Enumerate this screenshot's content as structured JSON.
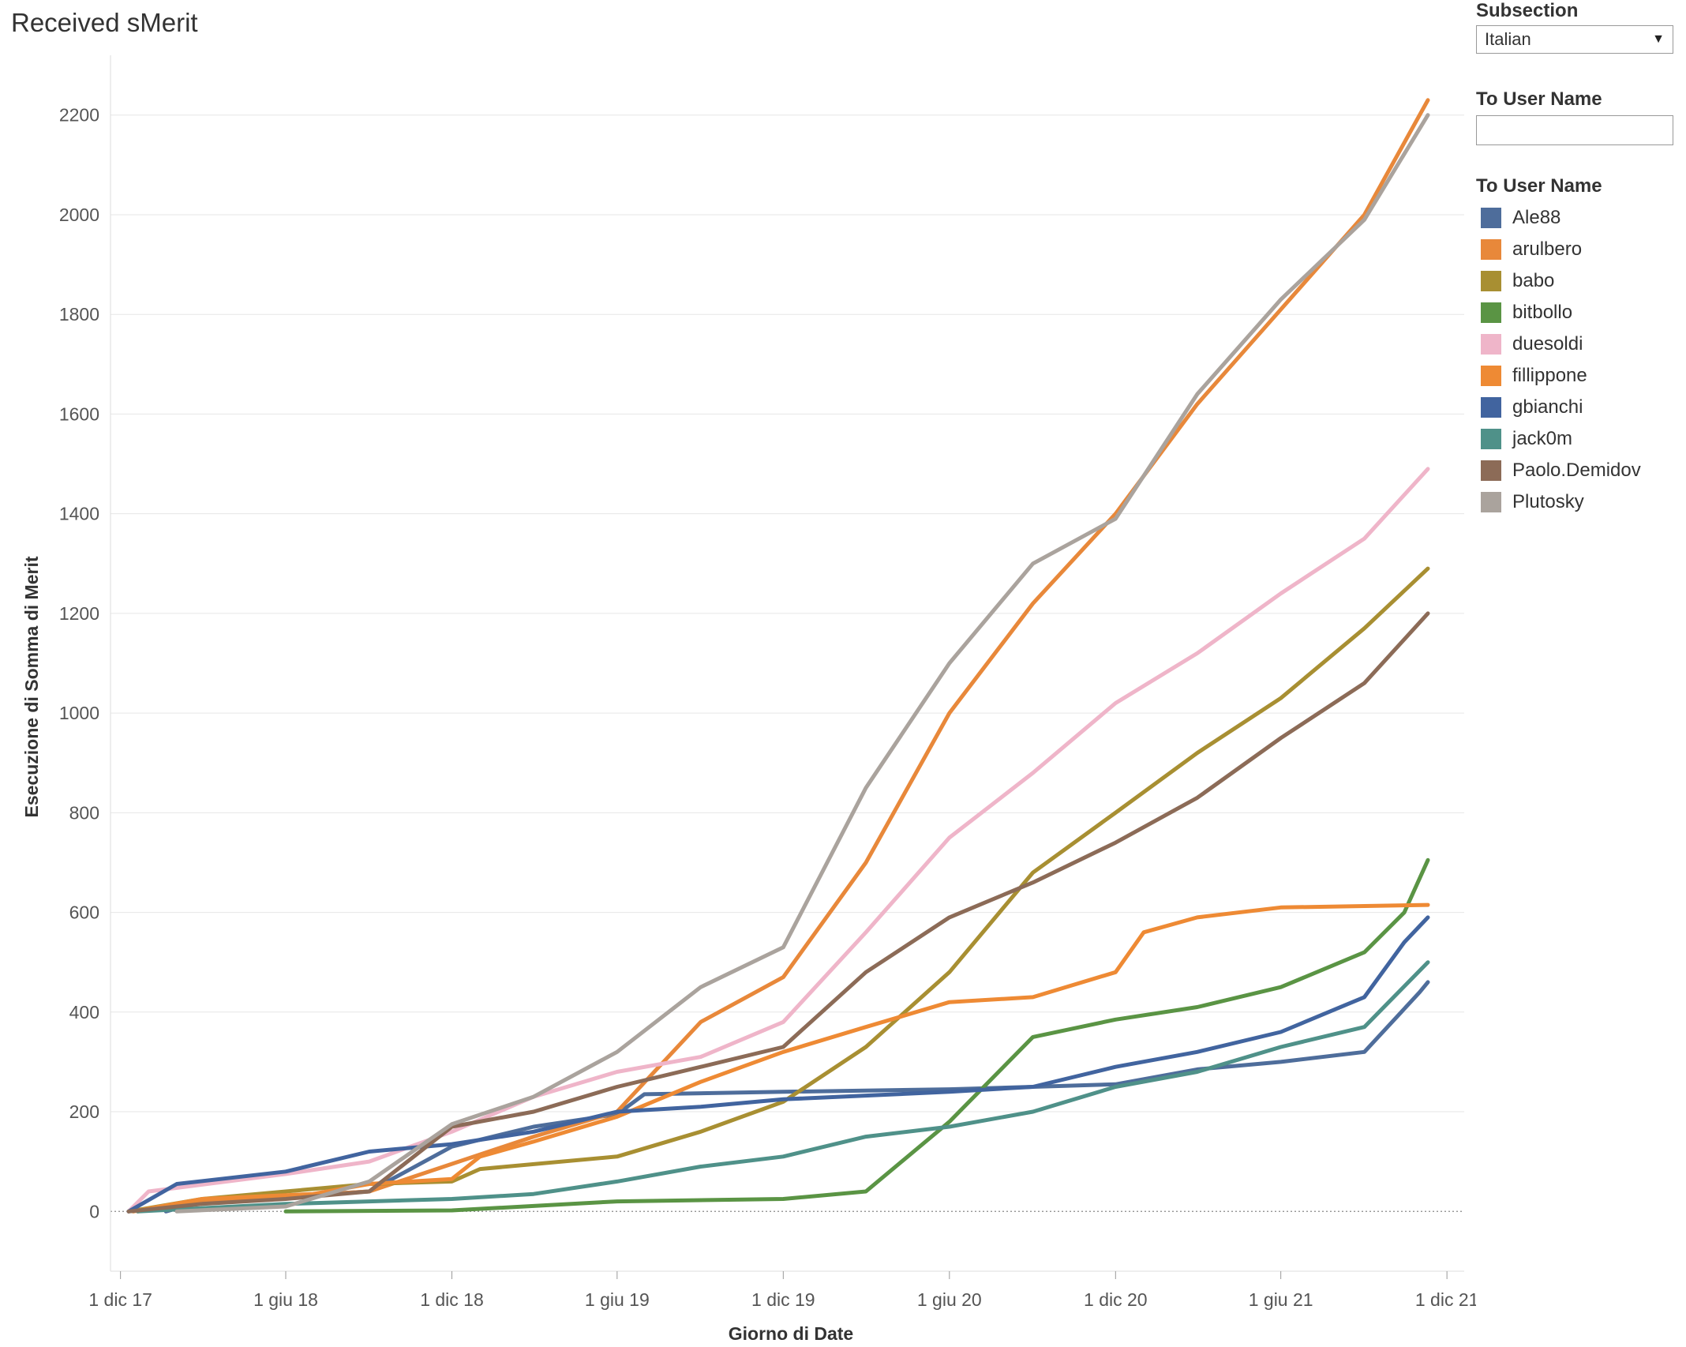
{
  "title": "Received sMerit",
  "controls": {
    "subsection_label": "Subsection",
    "subsection_value": "Italian",
    "filter_label": "To User Name",
    "filter_value": "",
    "legend_title": "To User Name"
  },
  "legend": [
    {
      "name": "Ale88",
      "color": "#4e6d9b"
    },
    {
      "name": "arulbero",
      "color": "#e8883a"
    },
    {
      "name": "babo",
      "color": "#a88f32"
    },
    {
      "name": "bitbollo",
      "color": "#5a9444"
    },
    {
      "name": "duesoldi",
      "color": "#efb5c9"
    },
    {
      "name": "fillippone",
      "color": "#ee8a34"
    },
    {
      "name": "gbianchi",
      "color": "#41649f"
    },
    {
      "name": "jack0m",
      "color": "#4f9189"
    },
    {
      "name": "Paolo.Demidov",
      "color": "#8c6b57"
    },
    {
      "name": "Plutosky",
      "color": "#aaa39d"
    }
  ],
  "chart_data": {
    "type": "line",
    "title": "Received sMerit",
    "xlabel": "Giorno di Date",
    "ylabel": "Esecuzione di Somma di Merit",
    "x_ticks": [
      "1 dic 17",
      "1 giu 18",
      "1 dic 18",
      "1 giu 19",
      "1 dic 19",
      "1 giu 20",
      "1 dic 20",
      "1 giu 21",
      "1 dic 21"
    ],
    "y_ticks": [
      0,
      200,
      400,
      600,
      800,
      1000,
      1200,
      1400,
      1600,
      1800,
      2000,
      2200
    ],
    "ylim": [
      -120,
      2320
    ],
    "xlim": [
      "2017-11-20",
      "2021-12-20"
    ],
    "grid": true,
    "legend_position": "right",
    "series": [
      {
        "name": "Ale88",
        "color": "#4e6d9b",
        "points": [
          [
            "2018-01-20",
            0
          ],
          [
            "2018-03-01",
            20
          ],
          [
            "2018-06-01",
            30
          ],
          [
            "2018-09-01",
            40
          ],
          [
            "2018-12-01",
            130
          ],
          [
            "2019-03-01",
            170
          ],
          [
            "2019-06-01",
            195
          ],
          [
            "2019-07-01",
            235
          ],
          [
            "2019-12-01",
            240
          ],
          [
            "2020-06-01",
            245
          ],
          [
            "2020-09-01",
            250
          ],
          [
            "2020-12-01",
            255
          ],
          [
            "2021-03-01",
            285
          ],
          [
            "2021-06-01",
            300
          ],
          [
            "2021-09-01",
            320
          ],
          [
            "2021-11-01",
            440
          ],
          [
            "2021-11-10",
            460
          ]
        ]
      },
      {
        "name": "arulbero",
        "color": "#e8883a",
        "points": [
          [
            "2017-12-20",
            0
          ],
          [
            "2018-03-01",
            20
          ],
          [
            "2018-09-01",
            40
          ],
          [
            "2019-03-01",
            150
          ],
          [
            "2019-06-01",
            200
          ],
          [
            "2019-09-01",
            380
          ],
          [
            "2019-12-01",
            470
          ],
          [
            "2020-03-01",
            700
          ],
          [
            "2020-06-01",
            1000
          ],
          [
            "2020-09-01",
            1220
          ],
          [
            "2020-12-01",
            1400
          ],
          [
            "2021-03-01",
            1620
          ],
          [
            "2021-06-01",
            1810
          ],
          [
            "2021-09-01",
            2000
          ],
          [
            "2021-11-10",
            2230
          ]
        ]
      },
      {
        "name": "babo",
        "color": "#a88f32",
        "points": [
          [
            "2017-12-10",
            0
          ],
          [
            "2018-03-01",
            25
          ],
          [
            "2018-06-01",
            40
          ],
          [
            "2018-09-01",
            55
          ],
          [
            "2018-12-01",
            60
          ],
          [
            "2019-01-01",
            85
          ],
          [
            "2019-06-01",
            110
          ],
          [
            "2019-09-01",
            160
          ],
          [
            "2019-12-01",
            220
          ],
          [
            "2020-03-01",
            330
          ],
          [
            "2020-06-01",
            480
          ],
          [
            "2020-09-01",
            680
          ],
          [
            "2020-12-01",
            800
          ],
          [
            "2021-03-01",
            920
          ],
          [
            "2021-06-01",
            1030
          ],
          [
            "2021-09-01",
            1170
          ],
          [
            "2021-11-10",
            1290
          ]
        ]
      },
      {
        "name": "bitbollo",
        "color": "#5a9444",
        "points": [
          [
            "2018-06-01",
            0
          ],
          [
            "2018-12-01",
            2
          ],
          [
            "2019-06-01",
            20
          ],
          [
            "2019-12-01",
            25
          ],
          [
            "2020-03-01",
            40
          ],
          [
            "2020-06-01",
            180
          ],
          [
            "2020-09-01",
            350
          ],
          [
            "2020-12-01",
            385
          ],
          [
            "2021-03-01",
            410
          ],
          [
            "2021-06-01",
            450
          ],
          [
            "2021-09-01",
            520
          ],
          [
            "2021-10-15",
            600
          ],
          [
            "2021-11-10",
            705
          ]
        ]
      },
      {
        "name": "duesoldi",
        "color": "#efb5c9",
        "points": [
          [
            "2017-12-10",
            0
          ],
          [
            "2018-01-01",
            40
          ],
          [
            "2018-06-01",
            75
          ],
          [
            "2018-09-01",
            100
          ],
          [
            "2018-12-01",
            160
          ],
          [
            "2019-03-01",
            230
          ],
          [
            "2019-06-01",
            280
          ],
          [
            "2019-09-01",
            310
          ],
          [
            "2019-12-01",
            380
          ],
          [
            "2020-03-01",
            560
          ],
          [
            "2020-06-01",
            750
          ],
          [
            "2020-09-01",
            880
          ],
          [
            "2020-12-01",
            1020
          ],
          [
            "2021-03-01",
            1120
          ],
          [
            "2021-06-01",
            1240
          ],
          [
            "2021-09-01",
            1350
          ],
          [
            "2021-11-10",
            1490
          ]
        ]
      },
      {
        "name": "fillippone",
        "color": "#ee8a34",
        "points": [
          [
            "2017-12-15",
            0
          ],
          [
            "2018-03-01",
            25
          ],
          [
            "2018-07-01",
            35
          ],
          [
            "2018-09-01",
            55
          ],
          [
            "2018-12-01",
            65
          ],
          [
            "2019-01-01",
            110
          ],
          [
            "2019-03-01",
            140
          ],
          [
            "2019-06-01",
            190
          ],
          [
            "2019-09-01",
            260
          ],
          [
            "2019-12-01",
            320
          ],
          [
            "2020-03-01",
            370
          ],
          [
            "2020-06-01",
            420
          ],
          [
            "2020-09-01",
            430
          ],
          [
            "2020-12-01",
            480
          ],
          [
            "2021-01-01",
            560
          ],
          [
            "2021-03-01",
            590
          ],
          [
            "2021-06-01",
            610
          ],
          [
            "2021-11-10",
            615
          ]
        ]
      },
      {
        "name": "gbianchi",
        "color": "#41649f",
        "points": [
          [
            "2017-12-10",
            0
          ],
          [
            "2018-02-01",
            55
          ],
          [
            "2018-06-01",
            80
          ],
          [
            "2018-09-01",
            120
          ],
          [
            "2018-12-01",
            135
          ],
          [
            "2019-03-01",
            160
          ],
          [
            "2019-06-01",
            200
          ],
          [
            "2019-09-01",
            210
          ],
          [
            "2019-12-01",
            225
          ],
          [
            "2020-06-01",
            240
          ],
          [
            "2020-09-01",
            250
          ],
          [
            "2020-12-01",
            290
          ],
          [
            "2021-03-01",
            320
          ],
          [
            "2021-06-01",
            360
          ],
          [
            "2021-09-01",
            430
          ],
          [
            "2021-10-15",
            540
          ],
          [
            "2021-11-10",
            590
          ]
        ]
      },
      {
        "name": "jack0m",
        "color": "#4f9189",
        "points": [
          [
            "2017-12-20",
            0
          ],
          [
            "2018-06-01",
            15
          ],
          [
            "2018-12-01",
            25
          ],
          [
            "2019-03-01",
            35
          ],
          [
            "2019-06-01",
            60
          ],
          [
            "2019-09-01",
            90
          ],
          [
            "2019-12-01",
            110
          ],
          [
            "2020-03-01",
            150
          ],
          [
            "2020-06-01",
            170
          ],
          [
            "2020-09-01",
            200
          ],
          [
            "2020-12-01",
            250
          ],
          [
            "2021-03-01",
            280
          ],
          [
            "2021-06-01",
            330
          ],
          [
            "2021-09-01",
            370
          ],
          [
            "2021-11-10",
            500
          ]
        ]
      },
      {
        "name": "Paolo.Demidov",
        "color": "#8c6b57",
        "points": [
          [
            "2017-12-10",
            0
          ],
          [
            "2018-03-01",
            15
          ],
          [
            "2018-06-01",
            25
          ],
          [
            "2018-09-01",
            40
          ],
          [
            "2018-12-01",
            170
          ],
          [
            "2019-03-01",
            200
          ],
          [
            "2019-06-01",
            250
          ],
          [
            "2019-09-01",
            290
          ],
          [
            "2019-12-01",
            330
          ],
          [
            "2020-03-01",
            480
          ],
          [
            "2020-06-01",
            590
          ],
          [
            "2020-09-01",
            660
          ],
          [
            "2020-12-01",
            740
          ],
          [
            "2021-03-01",
            830
          ],
          [
            "2021-06-01",
            950
          ],
          [
            "2021-09-01",
            1060
          ],
          [
            "2021-11-10",
            1200
          ]
        ]
      },
      {
        "name": "Plutosky",
        "color": "#aaa39d",
        "points": [
          [
            "2018-02-01",
            0
          ],
          [
            "2018-06-01",
            10
          ],
          [
            "2018-09-01",
            60
          ],
          [
            "2018-12-01",
            175
          ],
          [
            "2019-03-01",
            230
          ],
          [
            "2019-06-01",
            320
          ],
          [
            "2019-09-01",
            450
          ],
          [
            "2019-12-01",
            530
          ],
          [
            "2020-03-01",
            850
          ],
          [
            "2020-06-01",
            1100
          ],
          [
            "2020-09-01",
            1300
          ],
          [
            "2020-12-01",
            1390
          ],
          [
            "2021-03-01",
            1640
          ],
          [
            "2021-06-01",
            1830
          ],
          [
            "2021-09-01",
            1990
          ],
          [
            "2021-11-10",
            2200
          ]
        ]
      }
    ]
  }
}
